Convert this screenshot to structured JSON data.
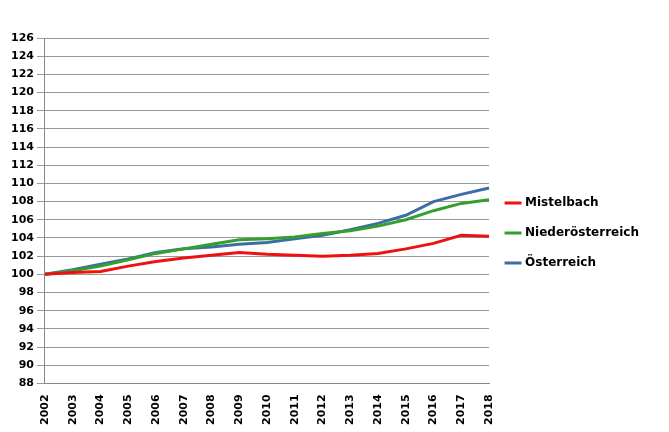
{
  "chart_data": {
    "type": "line",
    "categories": [
      "2002",
      "2003",
      "2004",
      "2005",
      "2006",
      "2007",
      "2008",
      "2009",
      "2010",
      "2011",
      "2012",
      "2013",
      "2014",
      "2015",
      "2016",
      "2017",
      "2018"
    ],
    "series": [
      {
        "name": "Mistelbach",
        "color": "#ee1111",
        "values": [
          100,
          100.2,
          100.3,
          100.9,
          101.4,
          101.8,
          102.1,
          102.4,
          102.2,
          102.1,
          102.0,
          102.1,
          102.3,
          102.8,
          103.4,
          104.3,
          104.2
        ]
      },
      {
        "name": "Niederösterreich",
        "color": "#33a02c",
        "values": [
          100,
          100.4,
          100.9,
          101.6,
          102.3,
          102.8,
          103.3,
          103.8,
          103.9,
          104.1,
          104.5,
          104.8,
          105.3,
          106.0,
          107.0,
          107.8,
          108.2
        ]
      },
      {
        "name": "Österreich",
        "color": "#3a6ea5",
        "values": [
          100,
          100.5,
          101.1,
          101.7,
          102.4,
          102.8,
          103.0,
          103.3,
          103.5,
          103.9,
          104.3,
          104.9,
          105.6,
          106.5,
          108.0,
          108.8,
          109.5
        ]
      }
    ],
    "ylim": [
      88,
      126
    ],
    "yticks": [
      88,
      90,
      92,
      94,
      96,
      98,
      100,
      102,
      104,
      106,
      108,
      110,
      112,
      114,
      116,
      118,
      120,
      122,
      124,
      126
    ],
    "grid": true,
    "legend": "right"
  }
}
